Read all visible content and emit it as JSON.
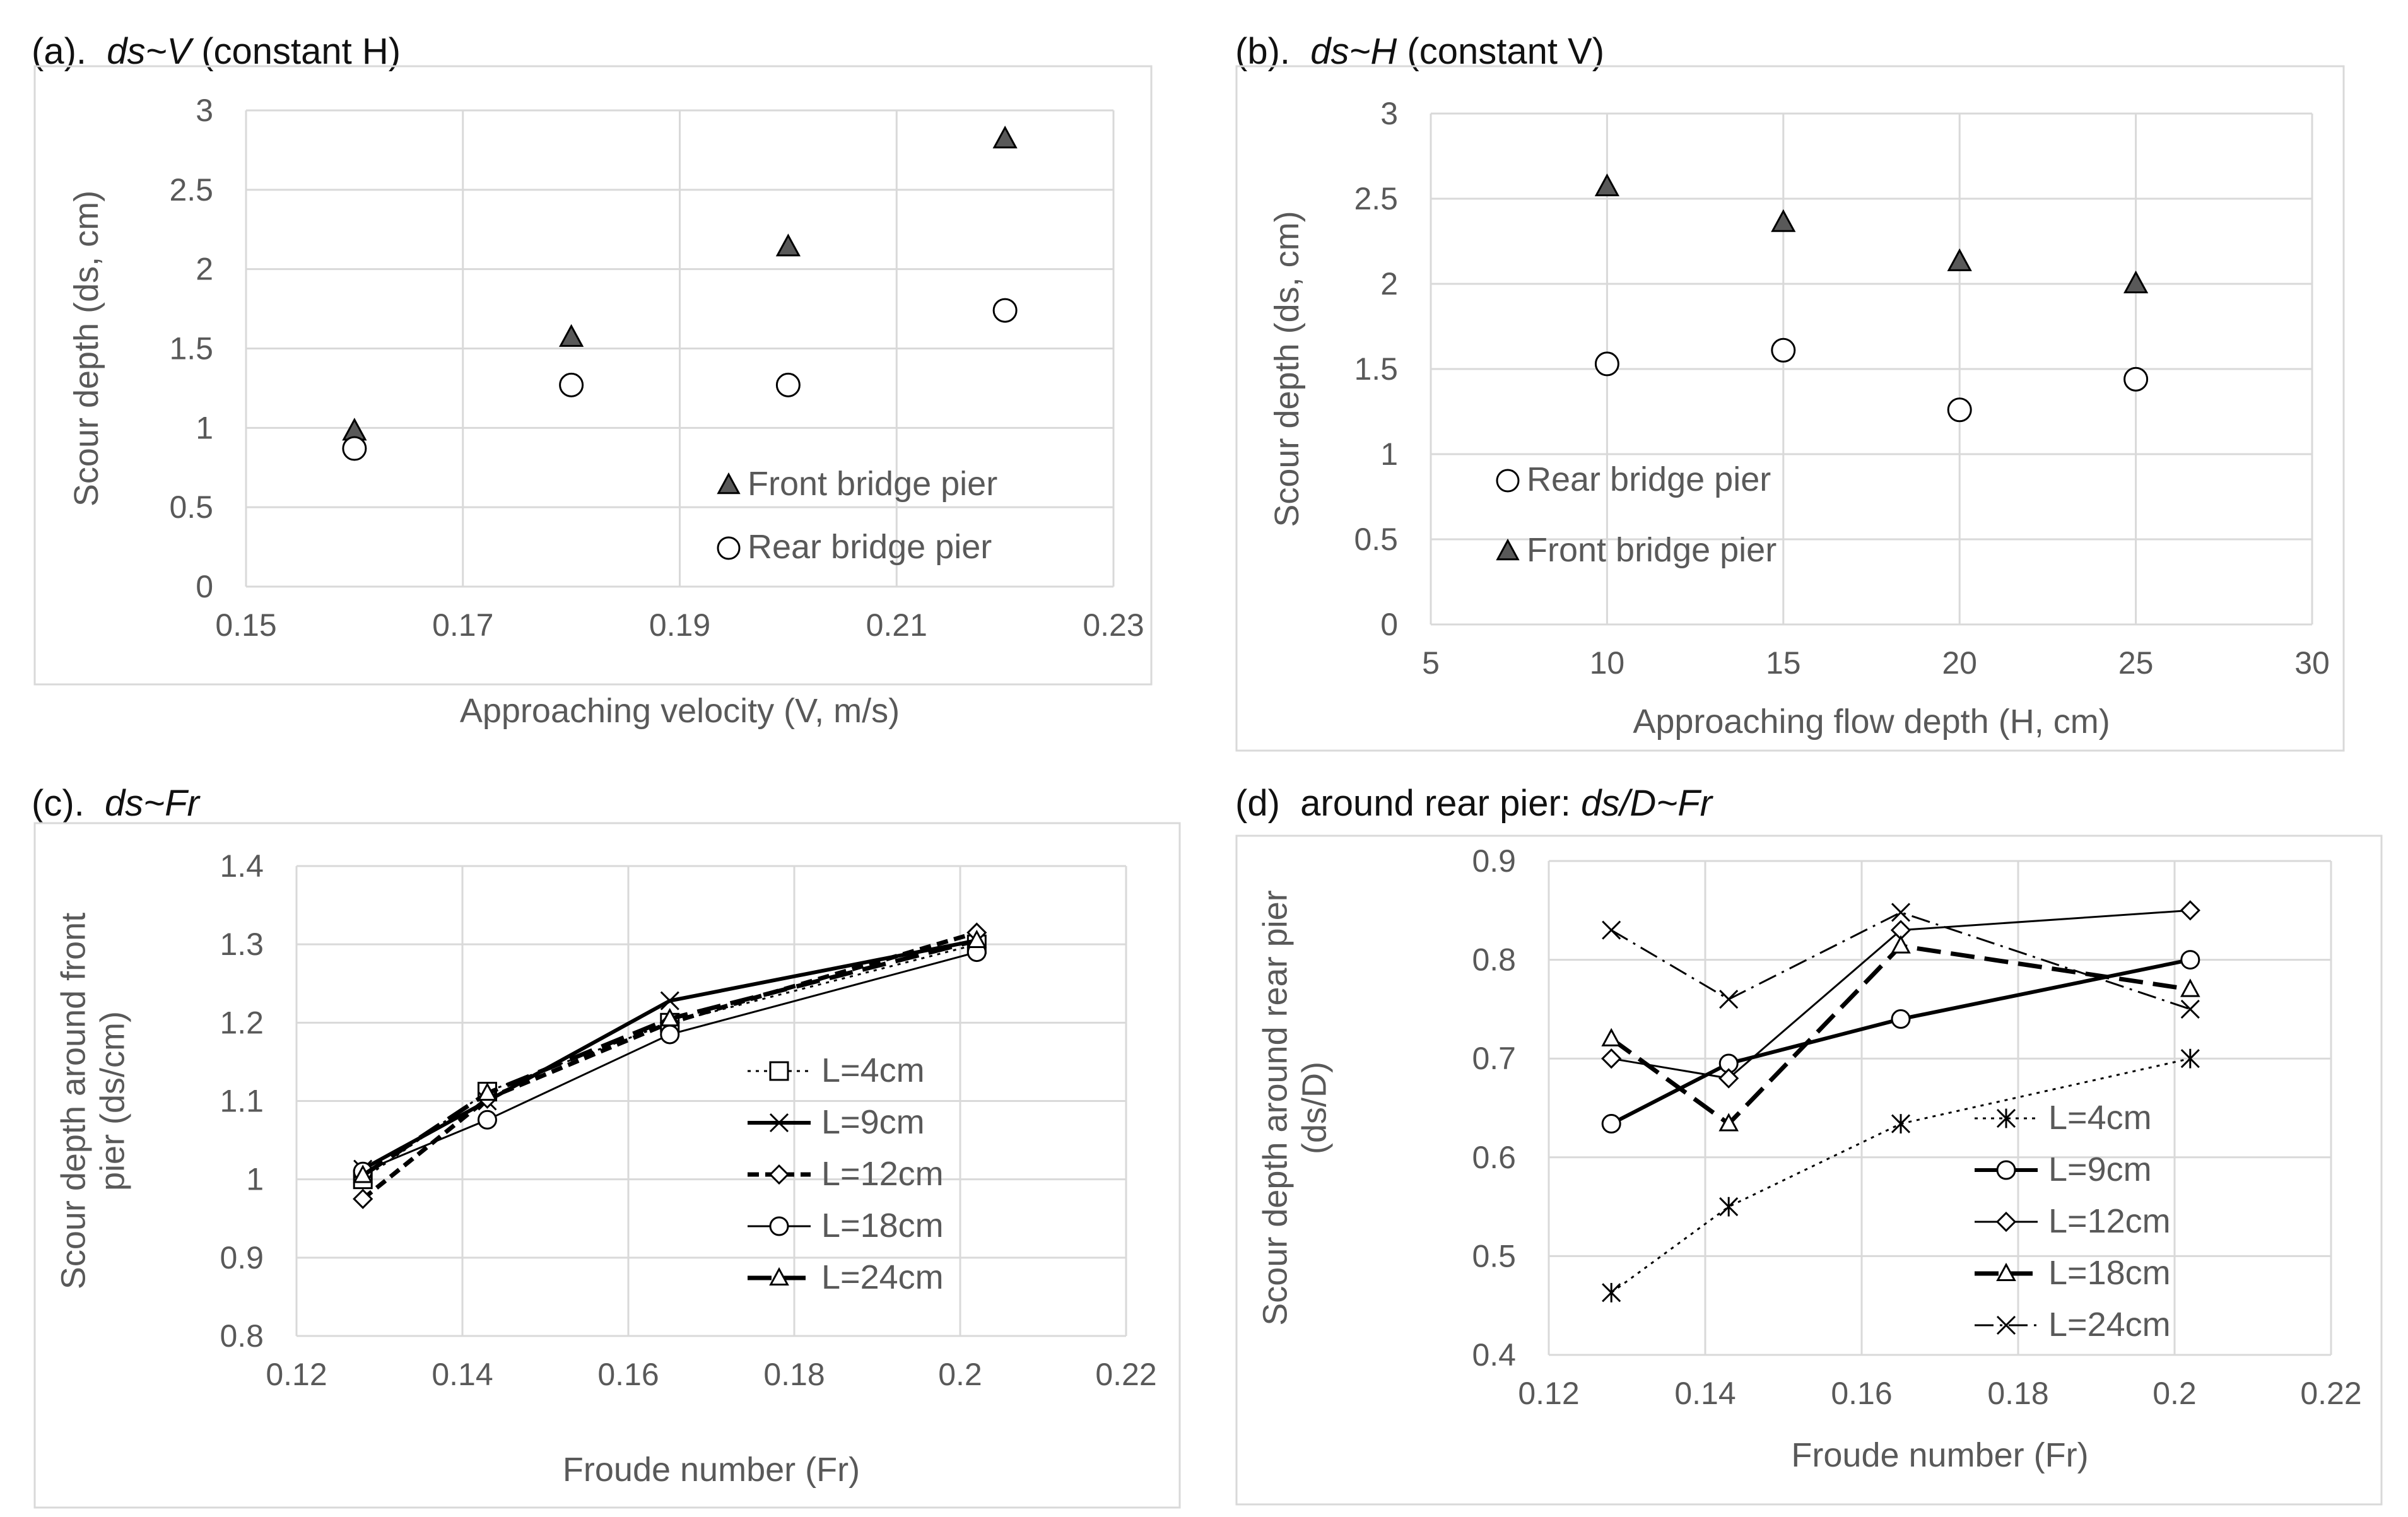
{
  "colors": {
    "line": "#000000",
    "grid": "#d9d9d9",
    "frame": "#d9d9d9",
    "marker_fill": "#595959",
    "text": "#595959"
  },
  "chart_data": [
    {
      "id": "a",
      "title_prefix": "(a).",
      "title_italic": "ds~V",
      "title_suffix": "(constant H)",
      "type": "scatter",
      "xlabel": "Approaching velocity (V, m/s)",
      "ylabel": "Scour depth (ds, cm)",
      "xlim": [
        0.15,
        0.23
      ],
      "ylim": [
        0,
        3
      ],
      "xticks": [
        "0.15",
        "0.17",
        "0.19",
        "0.21",
        "0.23"
      ],
      "yticks": [
        "0",
        "0.5",
        "1",
        "1.5",
        "2",
        "2.5",
        "3"
      ],
      "legend": "bottom-right",
      "series": [
        {
          "name": "Front bridge pier",
          "marker": "triangle-filled",
          "x": [
            0.16,
            0.18,
            0.2,
            0.22
          ],
          "y": [
            0.98,
            1.57,
            2.14,
            2.82
          ]
        },
        {
          "name": "Rear bridge pier",
          "marker": "circle",
          "x": [
            0.16,
            0.18,
            0.2,
            0.22
          ],
          "y": [
            0.87,
            1.27,
            1.27,
            1.74
          ]
        }
      ]
    },
    {
      "id": "b",
      "title_prefix": "(b).",
      "title_italic": "ds~H",
      "title_suffix": "(constant V)",
      "type": "scatter",
      "xlabel": "Approaching flow depth (H, cm)",
      "ylabel": "Scour depth (ds, cm)",
      "xlim": [
        5,
        30
      ],
      "ylim": [
        0,
        3
      ],
      "xticks": [
        "5",
        "10",
        "15",
        "20",
        "25",
        "30"
      ],
      "yticks": [
        "0",
        "0.5",
        "1",
        "1.5",
        "2",
        "2.5",
        "3"
      ],
      "legend": "bottom-left",
      "series": [
        {
          "name": "Rear bridge pier",
          "marker": "circle",
          "x": [
            10,
            15,
            20,
            25
          ],
          "y": [
            1.53,
            1.61,
            1.26,
            1.44
          ]
        },
        {
          "name": "Front bridge pier",
          "marker": "triangle-filled",
          "x": [
            10,
            15,
            20,
            25
          ],
          "y": [
            2.57,
            2.36,
            2.13,
            2.0
          ]
        }
      ]
    },
    {
      "id": "c",
      "title_prefix": "(c).",
      "title_italic": "ds~Fr",
      "title_suffix": "",
      "type": "line",
      "xlabel": "Froude number (Fr)",
      "ylabel_lines": [
        "Scour depth around front",
        "pier (ds/cm)"
      ],
      "xlim": [
        0.12,
        0.22
      ],
      "ylim": [
        0.8,
        1.4
      ],
      "xticks": [
        "0.12",
        "0.14",
        "0.16",
        "0.18",
        "0.2",
        "0.22"
      ],
      "yticks": [
        "0.8",
        "0.9",
        "1",
        "1.1",
        "1.2",
        "1.3",
        "1.4"
      ],
      "legend": "bottom-right",
      "x": [
        0.128,
        0.143,
        0.165,
        0.202
      ],
      "series": [
        {
          "name": "L=4cm",
          "marker": "square",
          "dash": "dotted",
          "values": [
            1.0,
            1.112,
            1.2,
            1.3
          ]
        },
        {
          "name": "L=9cm",
          "marker": "x",
          "dash": "solid-bold",
          "values": [
            1.013,
            1.1,
            1.228,
            1.305
          ]
        },
        {
          "name": "L=12cm",
          "marker": "diamond",
          "dash": "short-dash",
          "values": [
            0.975,
            1.103,
            1.2,
            1.315
          ]
        },
        {
          "name": "L=18cm",
          "marker": "circle",
          "dash": "solid",
          "values": [
            1.01,
            1.076,
            1.185,
            1.29
          ]
        },
        {
          "name": "L=24cm",
          "marker": "triangle",
          "dash": "long-dash",
          "values": [
            1.005,
            1.11,
            1.205,
            1.305
          ]
        }
      ]
    },
    {
      "id": "d",
      "title_prefix": "(d)",
      "title_plain": "around rear pier:",
      "title_italic": "ds/D~Fr",
      "title_suffix": "",
      "type": "line",
      "xlabel": "Froude number (Fr)",
      "ylabel_lines": [
        "Scour depth around rear pier",
        "(ds/D)"
      ],
      "xlim": [
        0.12,
        0.22
      ],
      "ylim": [
        0.4,
        0.9
      ],
      "xticks": [
        "0.12",
        "0.14",
        "0.16",
        "0.18",
        "0.2",
        "0.22"
      ],
      "yticks": [
        "0.4",
        "0.5",
        "0.6",
        "0.7",
        "0.8",
        "0.9"
      ],
      "legend": "bottom-right",
      "x": [
        0.128,
        0.143,
        0.165,
        0.202
      ],
      "series": [
        {
          "name": "L=4cm",
          "marker": "asterisk",
          "dash": "dotted",
          "values": [
            0.463,
            0.55,
            0.634,
            0.7
          ]
        },
        {
          "name": "L=9cm",
          "marker": "circle",
          "dash": "solid-bold",
          "values": [
            0.634,
            0.695,
            0.74,
            0.8
          ]
        },
        {
          "name": "L=12cm",
          "marker": "diamond",
          "dash": "solid",
          "values": [
            0.7,
            0.68,
            0.83,
            0.85
          ]
        },
        {
          "name": "L=18cm",
          "marker": "triangle",
          "dash": "long-dash",
          "values": [
            0.72,
            0.634,
            0.814,
            0.77
          ]
        },
        {
          "name": "L=24cm",
          "marker": "x",
          "dash": "dash-dot",
          "values": [
            0.83,
            0.76,
            0.848,
            0.75
          ]
        }
      ]
    }
  ]
}
